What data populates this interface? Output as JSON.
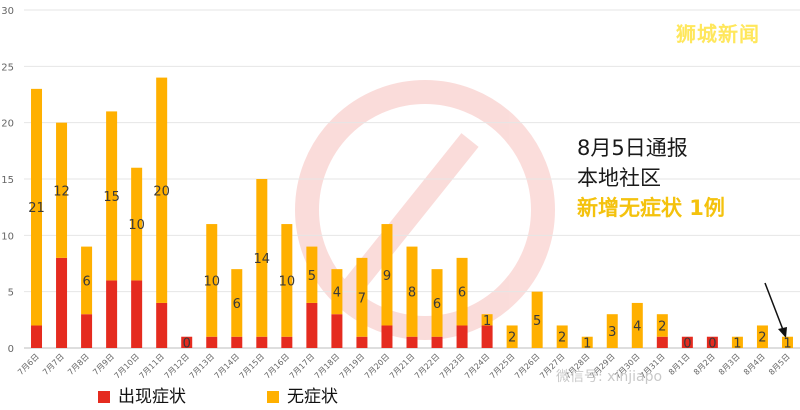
{
  "brand": "狮城新闻",
  "annotation": {
    "line1": "8月5日通报",
    "line2": "本地社区",
    "line3": "新增无症状 1例"
  },
  "watermark": "微信号: xinjiapo",
  "colors": {
    "symptomatic": "#e52b1f",
    "asymptomatic": "#ffb000",
    "brand": "#ffe75c",
    "highlight": "#f4c20d"
  },
  "chart_data": {
    "type": "bar",
    "stacked": true,
    "categories": [
      "7月6日",
      "7月7日",
      "7月8日",
      "7月9日",
      "7月10日",
      "7月11日",
      "7月12日",
      "7月13日",
      "7月14日",
      "7月15日",
      "7月16日",
      "7月17日",
      "7月18日",
      "7月19日",
      "7月20日",
      "7月21日",
      "7月22日",
      "7月23日",
      "7月24日",
      "7月25日",
      "7月26日",
      "7月27日",
      "7月28日",
      "7月29日",
      "7月30日",
      "7月31日",
      "8月1日",
      "8月2日",
      "8月3日",
      "8月4日",
      "8月5日"
    ],
    "series": [
      {
        "name": "出现症状",
        "color": "#e52b1f",
        "values": [
          2,
          8,
          3,
          6,
          6,
          4,
          1,
          1,
          1,
          1,
          1,
          4,
          3,
          1,
          2,
          1,
          1,
          2,
          2,
          0,
          0,
          0,
          0,
          0,
          0,
          1,
          1,
          1,
          0,
          0,
          0
        ]
      },
      {
        "name": "无症状",
        "color": "#ffb000",
        "values": [
          21,
          12,
          6,
          15,
          10,
          20,
          0,
          10,
          6,
          14,
          10,
          5,
          4,
          7,
          9,
          8,
          6,
          6,
          1,
          2,
          5,
          2,
          1,
          3,
          4,
          2,
          0,
          0,
          1,
          2,
          1
        ]
      }
    ],
    "ylim": [
      0,
      30
    ],
    "yticks": [
      0,
      5,
      10,
      15,
      20,
      25,
      30
    ],
    "grid": true,
    "legend_position": "bottom"
  }
}
